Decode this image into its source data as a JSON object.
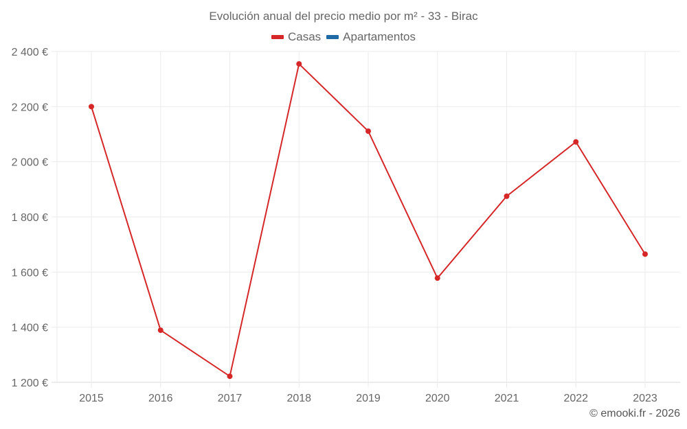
{
  "title": "Evolución anual del precio medio por m² - 33 - Birac",
  "legend": [
    {
      "label": "Casas",
      "color": "#d62728"
    },
    {
      "label": "Apartamentos",
      "color": "#1f6aa5"
    }
  ],
  "credit": "© emooki.fr - 2026",
  "chart_data": {
    "type": "line",
    "title": "Evolución anual del precio medio por m² - 33 - Birac",
    "xlabel": "",
    "ylabel": "",
    "x": [
      "2015",
      "2016",
      "2017",
      "2018",
      "2019",
      "2020",
      "2021",
      "2022",
      "2023"
    ],
    "series": [
      {
        "name": "Casas",
        "color": "#d62728",
        "values": [
          2200,
          1389,
          1222,
          2355,
          2111,
          1578,
          1875,
          2072,
          1665
        ]
      },
      {
        "name": "Apartamentos",
        "color": "#1f6aa5",
        "values": []
      }
    ],
    "ylim": [
      1200,
      2400
    ],
    "yticks": [
      1200,
      1400,
      1600,
      1800,
      2000,
      2200,
      2400
    ],
    "ytick_labels": [
      "1 200 €",
      "1 400 €",
      "1 600 €",
      "1 800 €",
      "2 000 €",
      "2 200 €",
      "2 400 €"
    ],
    "grid": true,
    "legend_position": "top"
  }
}
